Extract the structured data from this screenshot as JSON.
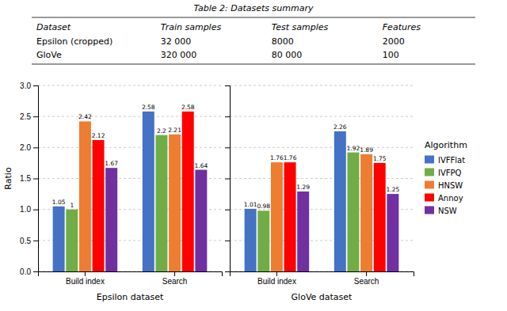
{
  "chart_data": [
    {
      "type": "table",
      "title": "Table 2: Datasets summary",
      "columns": [
        "Dataset",
        "Train samples",
        "Test samples",
        "Features"
      ],
      "rows": [
        [
          "Epsilon (cropped)",
          "32 000",
          "8000",
          "2000"
        ],
        [
          "GloVe",
          "320 000",
          "80 000",
          "100"
        ]
      ]
    },
    {
      "type": "bar",
      "xlabel": "Epsilon dataset",
      "ylabel": "Ratio",
      "categories": [
        "Build index",
        "Search"
      ],
      "series": [
        {
          "color": "#4472c4",
          "values": [
            1.05,
            2.58
          ]
        },
        {
          "color": "#70ad47",
          "values": [
            1,
            2.2
          ]
        },
        {
          "color": "#ed7d31",
          "values": [
            2.42,
            2.21
          ]
        },
        {
          "color": "#ff0000",
          "values": [
            2.12,
            2.58
          ]
        },
        {
          "color": "#7030a0",
          "values": [
            1.67,
            1.64
          ]
        }
      ],
      "ylim": [
        0,
        3
      ],
      "yticks": [
        {
          "value": 0,
          "label": "0.0"
        },
        0.5,
        {
          "value": 1,
          "label": "1.0"
        },
        1.5,
        {
          "value": 2,
          "label": "2.0"
        },
        2.5,
        {
          "value": 3,
          "label": "3.0"
        }
      ],
      "grid": true,
      "data_labels": true
    },
    {
      "type": "bar",
      "xlabel": "GloVe dataset",
      "categories": [
        "Build index",
        "Search"
      ],
      "series": [
        {
          "name": "IVFFlat",
          "color": "#4472c4",
          "values": [
            1.01,
            2.26
          ]
        },
        {
          "name": "IVFPQ",
          "color": "#70ad47",
          "values": [
            0.98,
            1.92
          ]
        },
        {
          "name": "HNSW",
          "color": "#ed7d31",
          "values": [
            1.76,
            1.89
          ]
        },
        {
          "name": "Annoy",
          "color": "#ff0000",
          "values": [
            1.76,
            1.75
          ]
        },
        {
          "name": "NSW",
          "color": "#7030a0",
          "values": [
            1.29,
            1.25
          ]
        }
      ],
      "ylim": [
        0,
        3
      ],
      "yticks": [
        0,
        0.5,
        1,
        1.5,
        2,
        2.5,
        3
      ],
      "grid": true,
      "data_labels": true,
      "tick_labels": "x",
      "legend": "right",
      "legend_title": "Algorithm"
    }
  ]
}
